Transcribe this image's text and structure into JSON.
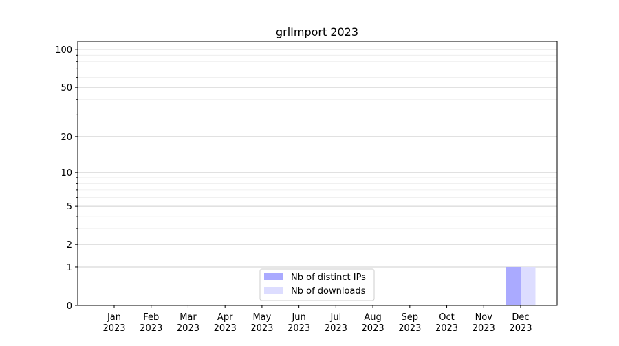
{
  "chart_data": {
    "type": "bar",
    "title": "grlImport 2023",
    "xlabel": "",
    "ylabel": "",
    "y_scale": "log(1+y)",
    "ylim": [
      0,
      116
    ],
    "y_ticks": [
      0,
      1,
      2,
      5,
      10,
      20,
      50,
      100
    ],
    "y_minor_ticks": [
      3,
      4,
      6,
      7,
      8,
      9,
      30,
      40,
      60,
      70,
      80,
      90
    ],
    "grid": true,
    "categories": [
      "Jan\n2023",
      "Feb\n2023",
      "Mar\n2023",
      "Apr\n2023",
      "May\n2023",
      "Jun\n2023",
      "Jul\n2023",
      "Aug\n2023",
      "Sep\n2023",
      "Oct\n2023",
      "Nov\n2023",
      "Dec\n2023"
    ],
    "series": [
      {
        "name": "Nb of distinct IPs",
        "color": "#aaaaff",
        "values": [
          0,
          0,
          0,
          0,
          0,
          0,
          0,
          0,
          0,
          0,
          0,
          1
        ]
      },
      {
        "name": "Nb of downloads",
        "color": "#ddddff",
        "values": [
          0,
          0,
          0,
          0,
          0,
          0,
          0,
          0,
          0,
          0,
          0,
          1
        ]
      }
    ],
    "legend_placement": "bottom-center"
  }
}
